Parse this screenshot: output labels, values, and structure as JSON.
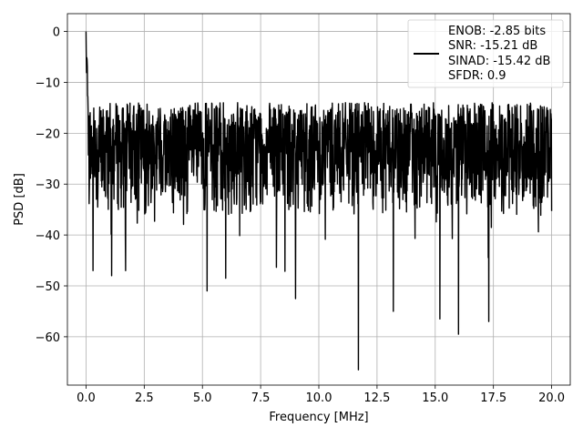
{
  "chart_data": {
    "type": "line",
    "xlabel": "Frequency [MHz]",
    "ylabel": "PSD [dB]",
    "xlim": [
      -0.8,
      20.8
    ],
    "ylim": [
      -69.5,
      3.5
    ],
    "xticks": [
      0.0,
      2.5,
      5.0,
      7.5,
      10.0,
      12.5,
      15.0,
      17.5,
      20.0
    ],
    "xtick_labels": [
      "0.0",
      "2.5",
      "5.0",
      "7.5",
      "10.0",
      "12.5",
      "15.0",
      "17.5",
      "20.0"
    ],
    "yticks": [
      0,
      -10,
      -20,
      -30,
      -40,
      -50,
      -60
    ],
    "ytick_labels": [
      "0",
      "−10",
      "−20",
      "−30",
      "−40",
      "−50",
      "−60"
    ],
    "grid": true,
    "legend": {
      "placement": "upper-right",
      "entries": [
        "ENOB: -2.85 bits",
        "SNR: -15.21 dB",
        "SINAD: -15.42 dB",
        "SFDR: 0.9"
      ]
    },
    "series": [
      {
        "color": "#000000",
        "x_range": [
          0.0,
          20.0
        ],
        "noise_floor_range_db": [
          -36,
          -14
        ],
        "peak_db": 0.0,
        "notable_dips": [
          {
            "x": 0.3,
            "y": -47
          },
          {
            "x": 1.1,
            "y": -48
          },
          {
            "x": 1.7,
            "y": -47
          },
          {
            "x": 5.2,
            "y": -51
          },
          {
            "x": 6.0,
            "y": -48.5
          },
          {
            "x": 9.0,
            "y": -52.5
          },
          {
            "x": 11.7,
            "y": -66.5
          },
          {
            "x": 13.2,
            "y": -55
          },
          {
            "x": 15.2,
            "y": -56.5
          },
          {
            "x": 16.0,
            "y": -59.5
          },
          {
            "x": 17.3,
            "y": -57
          }
        ]
      }
    ]
  }
}
